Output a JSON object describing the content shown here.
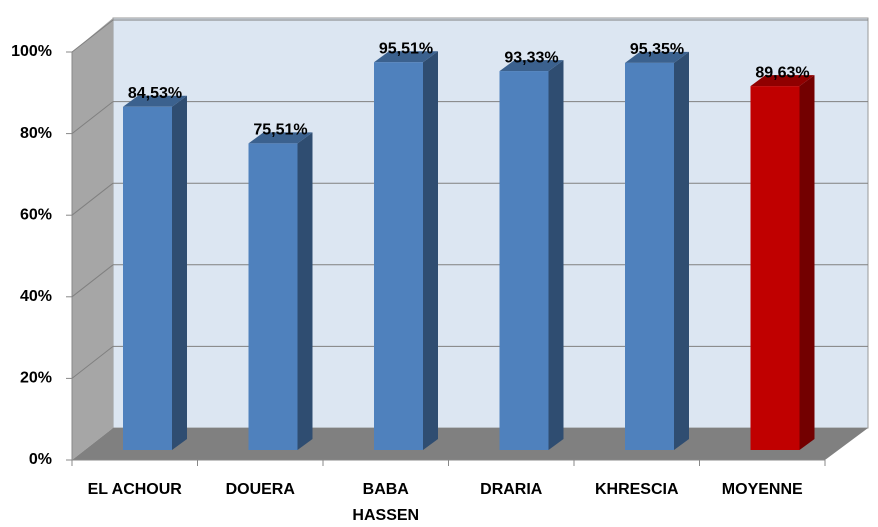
{
  "chart_data": {
    "type": "bar3d",
    "categories": [
      "EL ACHOUR",
      "DOUERA",
      "BABA HASSEN",
      "DRARIA",
      "KHRESCIA",
      "MOYENNE"
    ],
    "values": [
      84.53,
      75.51,
      95.51,
      93.33,
      95.35,
      89.63
    ],
    "value_labels": [
      "84,53%",
      "75,51%",
      "95,51%",
      "93,33%",
      "95,35%",
      "89,63%"
    ],
    "colors": [
      "#4f81bd",
      "#4f81bd",
      "#4f81bd",
      "#4f81bd",
      "#4f81bd",
      "#c00000"
    ],
    "ylim": [
      0,
      100
    ],
    "yticks": [
      {
        "value": 0,
        "label": "0%"
      },
      {
        "value": 20,
        "label": "20%"
      },
      {
        "value": 40,
        "label": "40%"
      },
      {
        "value": 60,
        "label": "60%"
      },
      {
        "value": 80,
        "label": "80%"
      },
      {
        "value": 100,
        "label": "100%"
      }
    ],
    "grid": true
  }
}
